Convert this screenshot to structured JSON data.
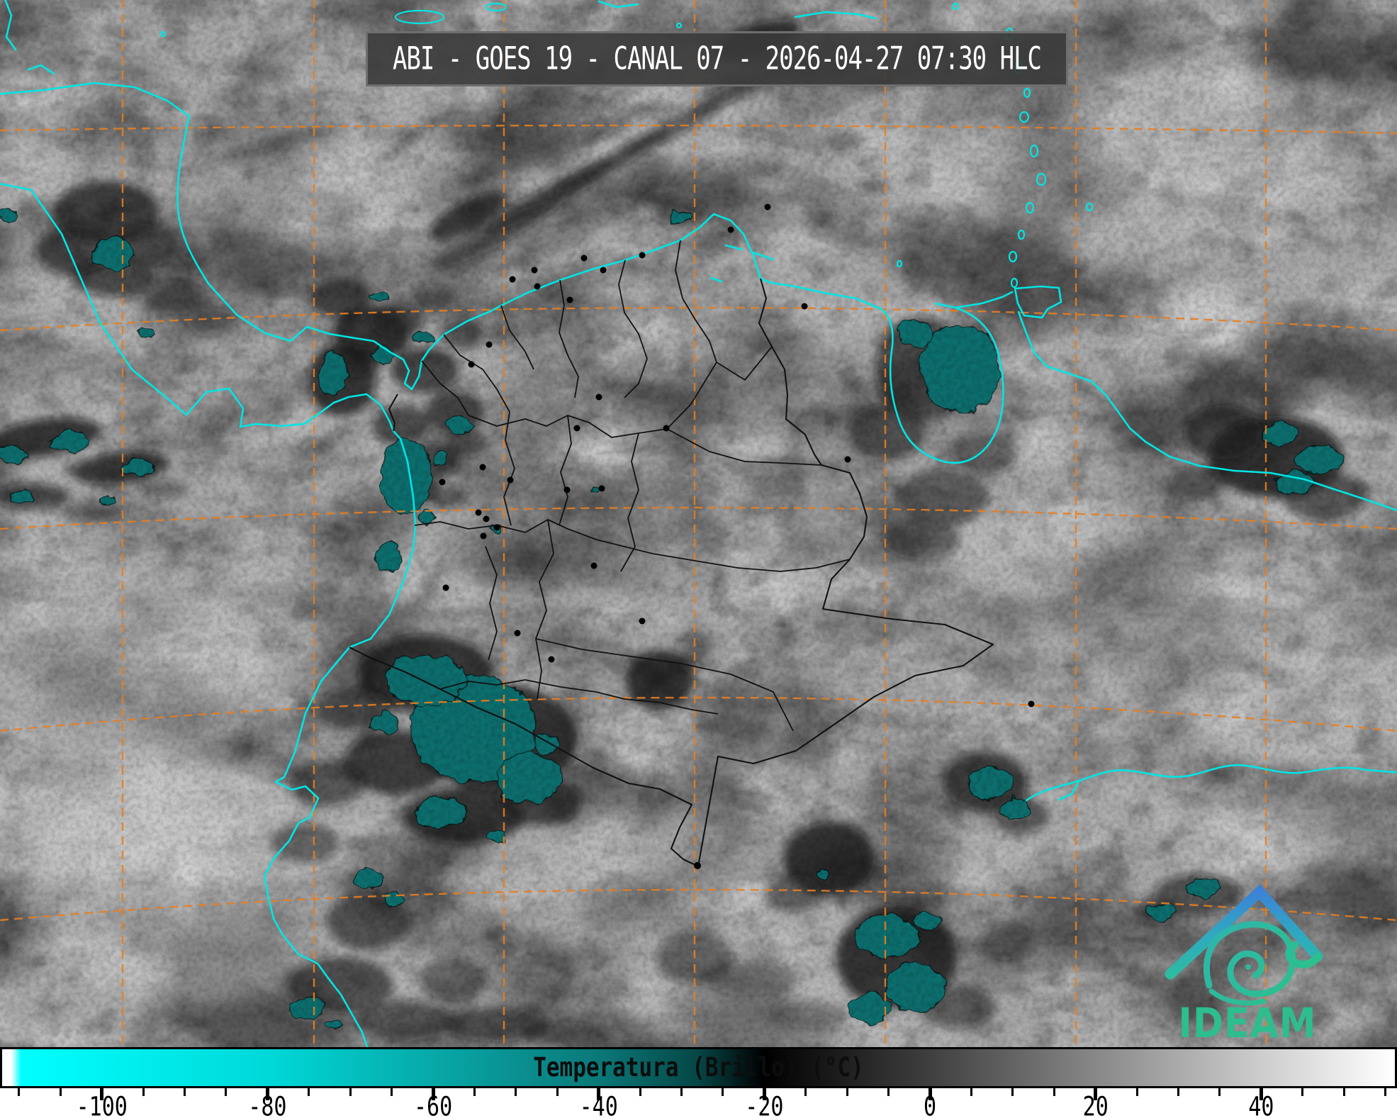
{
  "header": {
    "title": "ABI - GOES 19 - CANAL 07 - 2026-04-27 07:30 HLC"
  },
  "logo": {
    "text": "IDEAM"
  },
  "colorbar": {
    "label": "Temperatura (Brillo) (°C)",
    "min": -112.3,
    "max": 56.4,
    "major_ticks": [
      -100,
      -80,
      -60,
      -40,
      -20,
      0,
      20,
      40
    ],
    "minor_tick_start": -110,
    "minor_tick_end": 55,
    "minor_tick_step": 5,
    "gradient": [
      {
        "v": -112.3,
        "color": "#ffffff"
      },
      {
        "v": -111.2,
        "color": "#ffffff"
      },
      {
        "v": -110.0,
        "color": "#00ffff"
      },
      {
        "v": -95.0,
        "color": "#00ecec"
      },
      {
        "v": -80.0,
        "color": "#00d8d8"
      },
      {
        "v": -60.0,
        "color": "#08a8a8"
      },
      {
        "v": -40.0,
        "color": "#0b7878"
      },
      {
        "v": -28.0,
        "color": "#064646"
      },
      {
        "v": -20.0,
        "color": "#000000"
      },
      {
        "v": 0.0,
        "color": "#3f3f3f"
      },
      {
        "v": 20.0,
        "color": "#878787"
      },
      {
        "v": 40.0,
        "color": "#cccccc"
      },
      {
        "v": 56.4,
        "color": "#ffffff"
      }
    ]
  },
  "map": {
    "colors": {
      "background_gray": "#a7a7a7",
      "cold_cloud_teal": "#0b6e6e",
      "coastline_cyan": "#00e5e5",
      "graticule_orange": "#e67e22",
      "border_black": "#111111",
      "title_text": "#ffffff",
      "logo_green": "#2dbd8f",
      "logo_blue": "#3d7fd8"
    }
  }
}
